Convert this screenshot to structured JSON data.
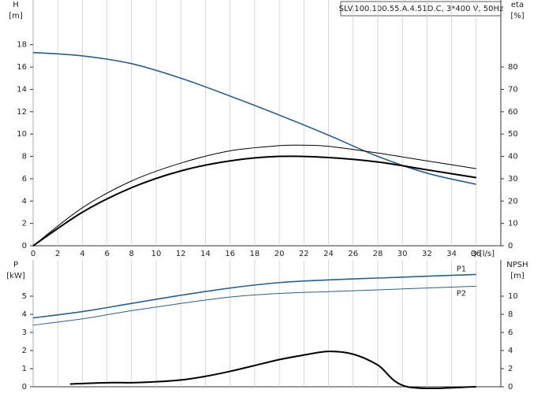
{
  "chart_data": [
    {
      "type": "line",
      "title": "SLV.100.100.55.A.4.51D.C, 3*400 V, 50Hz",
      "xlabel": "Q [l/s]",
      "ylabel": "H",
      "yunit": "[m]",
      "y2label": "eta",
      "y2unit": "[%]",
      "xlim": [
        0,
        38
      ],
      "xticks": [
        0,
        2,
        4,
        6,
        8,
        10,
        12,
        14,
        16,
        18,
        20,
        22,
        24,
        26,
        28,
        30,
        32,
        34,
        36
      ],
      "ylim": [
        0,
        22
      ],
      "yticks": [
        0,
        2,
        4,
        6,
        8,
        10,
        12,
        14,
        16,
        18
      ],
      "y2lim": [
        0,
        110
      ],
      "y2ticks": [
        0,
        10,
        20,
        30,
        40,
        50,
        60,
        70,
        80
      ],
      "grid": true,
      "series": [
        {
          "color": "#2c5f8a",
          "linewidth": 1.6,
          "x": [
            0,
            4,
            8,
            12,
            16,
            20,
            24,
            28,
            32,
            36
          ],
          "values": [
            17.3,
            17.0,
            16.3,
            15.0,
            13.4,
            11.7,
            9.9,
            8.0,
            6.5,
            5.5
          ]
        },
        {
          "color": "#000000",
          "linewidth": 1,
          "axis": "y2",
          "x": [
            0,
            4,
            8,
            12,
            16,
            20,
            22,
            24,
            28,
            32,
            36
          ],
          "values": [
            0,
            17,
            29,
            37,
            42.5,
            44.8,
            45,
            44.5,
            41.5,
            38,
            34.5
          ]
        },
        {
          "color": "#000000",
          "linewidth": 2,
          "axis": "y2",
          "x": [
            0,
            4,
            8,
            12,
            16,
            20,
            24,
            28,
            32,
            36
          ],
          "values": [
            0,
            15,
            26,
            33.5,
            38,
            40,
            39.5,
            37.5,
            34,
            30.5
          ]
        }
      ]
    },
    {
      "type": "line",
      "ylabel": "P",
      "yunit": "[kW]",
      "y2label": "NPSH",
      "y2unit": "[m]",
      "xlim": [
        0,
        38
      ],
      "ylim": [
        0,
        7
      ],
      "yticks": [
        0,
        1,
        2,
        3,
        4,
        5
      ],
      "y2lim": [
        0,
        14
      ],
      "y2ticks": [
        0,
        2,
        4,
        6,
        8,
        10
      ],
      "grid": true,
      "series": [
        {
          "name": "P1",
          "color": "#2c5f8a",
          "linewidth": 1.6,
          "x": [
            0,
            4,
            8,
            12,
            16,
            20,
            24,
            28,
            32,
            36
          ],
          "values": [
            3.8,
            4.15,
            4.6,
            5.05,
            5.45,
            5.75,
            5.9,
            6.0,
            6.1,
            6.2
          ]
        },
        {
          "name": "P2",
          "color": "#2c5f8a",
          "linewidth": 1,
          "x": [
            0,
            4,
            8,
            12,
            16,
            20,
            24,
            28,
            32,
            36
          ],
          "values": [
            3.4,
            3.75,
            4.2,
            4.6,
            4.95,
            5.15,
            5.25,
            5.35,
            5.45,
            5.55
          ]
        },
        {
          "color": "#000000",
          "linewidth": 2,
          "axis": "y2",
          "x": [
            3,
            6,
            8,
            10,
            12,
            14,
            16,
            18,
            20,
            22,
            24,
            26,
            28,
            30.4,
            36
          ],
          "values": [
            0.3,
            0.45,
            0.45,
            0.55,
            0.75,
            1.15,
            1.7,
            2.35,
            3.0,
            3.5,
            3.9,
            3.6,
            2.4,
            0,
            0
          ]
        }
      ]
    }
  ]
}
